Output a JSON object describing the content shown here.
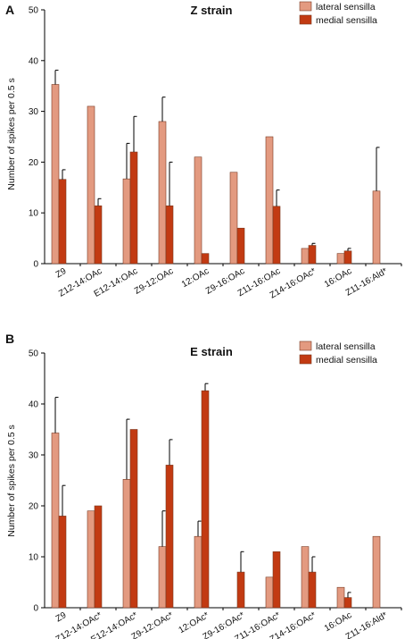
{
  "colors": {
    "lateral": "#e39a80",
    "medial": "#c23a12"
  },
  "chart_data": [
    {
      "type": "bar",
      "panel": "A",
      "title": "Z strain",
      "ylabel": "Number of spikes per 0.5 s",
      "ylim": [
        0,
        50
      ],
      "yticks": [
        0,
        10,
        20,
        30,
        40,
        50
      ],
      "legend": "top-right",
      "categories": [
        "Z9",
        "Z12-14:OAc",
        "E12-14:OAc",
        "Z9-12:OAc",
        "12:OAc",
        "Z9-16:OAc",
        "Z11-16:OAc",
        "Z14-16:OAc*",
        "16:OAc",
        "Z11-16:Ald*"
      ],
      "series": [
        {
          "name": "lateral sensilla",
          "values": [
            35.3,
            31,
            16.7,
            28,
            21,
            18,
            25,
            3,
            2,
            14.3
          ],
          "errors": [
            2.8,
            null,
            7,
            4.8,
            null,
            null,
            null,
            null,
            null,
            8.6
          ]
        },
        {
          "name": "medial sensilla",
          "values": [
            16.6,
            11.4,
            22,
            11.4,
            2,
            7,
            11.3,
            3.6,
            2.5,
            null
          ],
          "errors": [
            1.9,
            1.4,
            7,
            8.6,
            null,
            null,
            3.2,
            0.4,
            0.5,
            null
          ]
        }
      ]
    },
    {
      "type": "bar",
      "panel": "B",
      "title": "E strain",
      "ylabel": "Number of spikes per 0.5 s",
      "ylim": [
        0,
        50
      ],
      "yticks": [
        0,
        10,
        20,
        30,
        40,
        50
      ],
      "legend": "top-right",
      "categories": [
        "Z9",
        "Z12-14:OAc*",
        "E12-14:OAc*",
        "Z9-12:OAc*",
        "12:OAc*",
        "Z9-16:OAc*",
        "Z11-16:OAc*",
        "Z14-16:OAc*",
        "16:OAc",
        "Z11-16:Ald*"
      ],
      "series": [
        {
          "name": "lateral sensilla",
          "values": [
            34.3,
            19,
            25.2,
            12,
            14,
            0,
            6,
            12,
            4,
            14
          ],
          "errors": [
            7,
            null,
            11.8,
            7,
            3,
            null,
            null,
            null,
            null,
            null
          ]
        },
        {
          "name": "medial sensilla",
          "values": [
            18,
            20,
            35,
            28,
            42.6,
            7,
            11,
            7,
            2,
            0
          ],
          "errors": [
            6,
            null,
            null,
            5,
            1.4,
            4,
            null,
            3,
            1,
            null
          ]
        }
      ]
    }
  ]
}
